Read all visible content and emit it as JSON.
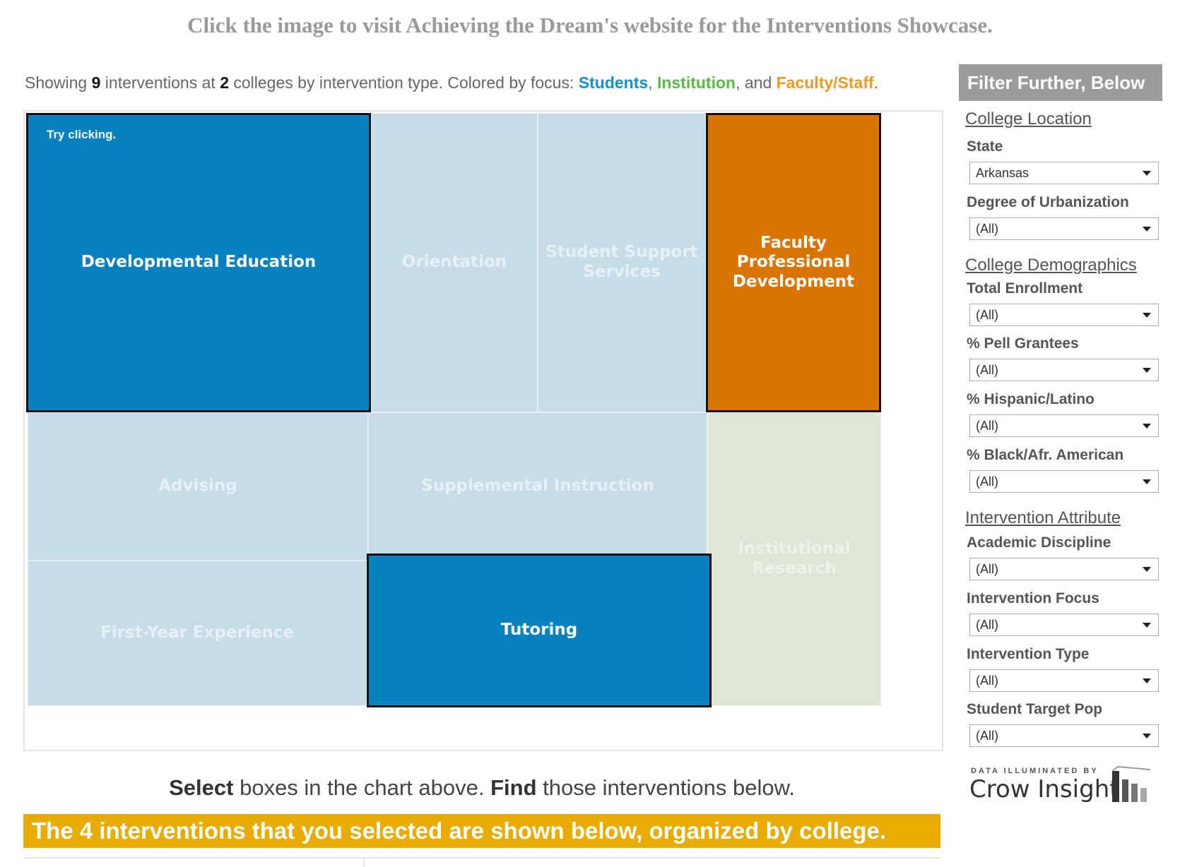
{
  "banner": "Click the image to visit Achieving the Dream's website for the Interventions Showcase.",
  "summary": {
    "prefix": "Showing ",
    "interventions_count": "9",
    "mid1": " interventions at ",
    "colleges_count": "2",
    "mid2": " colleges by intervention type. Colored by focus: ",
    "students": "Students",
    "sep1": ", ",
    "institution": "Institution",
    "sep2": ", and ",
    "faculty": "Faculty/Staff",
    "end": "."
  },
  "treemap": {
    "hint": "Try clicking.",
    "tiles": [
      {
        "label": "Developmental Education",
        "focus": "Students",
        "selected": true
      },
      {
        "label": "Orientation",
        "focus": "Students",
        "selected": false
      },
      {
        "label": "Student Support Services",
        "focus": "Students",
        "selected": false
      },
      {
        "label": "Faculty Professional Development",
        "focus": "Faculty/Staff",
        "selected": true
      },
      {
        "label": "Advising",
        "focus": "Students",
        "selected": false
      },
      {
        "label": "Supplemental Instruction",
        "focus": "Students",
        "selected": false
      },
      {
        "label": "Institutional Research",
        "focus": "Institution",
        "selected": false
      },
      {
        "label": "First-Year Experience",
        "focus": "Students",
        "selected": false
      },
      {
        "label": "Tutoring",
        "focus": "Students",
        "selected": true
      }
    ]
  },
  "instructions": {
    "select_bold": "Select",
    "select_rest": " boxes in the chart above. ",
    "find_bold": "Find",
    "find_rest": " those interventions below."
  },
  "result_bar": "The 4 interventions that you selected are shown below, organized by college.",
  "filters": {
    "header": "Filter Further, Below",
    "sections": {
      "location": "College Location",
      "demographics": "College Demographics",
      "attribute": "Intervention Attribute"
    },
    "fields": {
      "state": {
        "label": "State",
        "value": "Arkansas"
      },
      "urbanization": {
        "label": "Degree of Urbanization",
        "value": "(All)"
      },
      "enrollment": {
        "label": "Total Enrollment",
        "value": "(All)"
      },
      "pell": {
        "label": "% Pell Grantees",
        "value": "(All)"
      },
      "hispanic": {
        "label": "% Hispanic/Latino",
        "value": "(All)"
      },
      "black": {
        "label": "% Black/Afr. American",
        "value": "(All)"
      },
      "discipline": {
        "label": "Academic Discipline",
        "value": "(All)"
      },
      "focus": {
        "label": "Intervention Focus",
        "value": "(All)"
      },
      "type": {
        "label": "Intervention Type",
        "value": "(All)"
      },
      "target": {
        "label": "Student Target Pop",
        "value": "(All)"
      }
    }
  },
  "logo": {
    "tagline": "DATA ILLUMINATED BY",
    "brand": "Crow Insight"
  },
  "colors": {
    "students": "#0581bf",
    "students_dim": "#c8dce8",
    "institution_dim": "#dfe6d8",
    "faculty": "#d97400",
    "result_bar": "#e8ac00",
    "filter_header": "#9b9b9b"
  }
}
